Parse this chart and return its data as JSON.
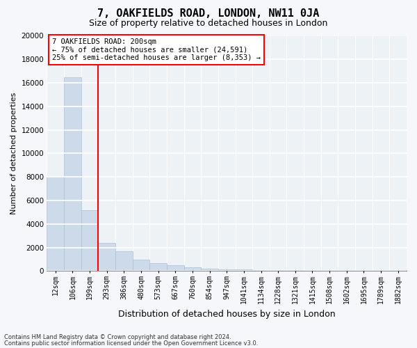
{
  "title": "7, OAKFIELDS ROAD, LONDON, NW11 0JA",
  "subtitle": "Size of property relative to detached houses in London",
  "xlabel": "Distribution of detached houses by size in London",
  "ylabel": "Number of detached properties",
  "bar_labels": [
    "12sqm",
    "106sqm",
    "199sqm",
    "293sqm",
    "386sqm",
    "480sqm",
    "573sqm",
    "667sqm",
    "760sqm",
    "854sqm",
    "947sqm",
    "1041sqm",
    "1134sqm",
    "1228sqm",
    "1321sqm",
    "1415sqm",
    "1508sqm",
    "1602sqm",
    "1695sqm",
    "1789sqm",
    "1882sqm"
  ],
  "bar_values": [
    8000,
    16500,
    5200,
    2400,
    1700,
    980,
    700,
    480,
    330,
    230,
    170,
    130,
    100,
    80,
    60,
    48,
    35,
    28,
    20,
    15,
    10
  ],
  "bar_color": "#ccdaea",
  "bar_edge_color": "#aac0d8",
  "property_bar_index": 2,
  "property_line_color": "red",
  "annotation_text": "7 OAKFIELDS ROAD: 200sqm\n← 75% of detached houses are smaller (24,591)\n25% of semi-detached houses are larger (8,353) →",
  "annotation_box_facecolor": "white",
  "annotation_box_edgecolor": "red",
  "ylim": [
    0,
    20000
  ],
  "yticks": [
    0,
    2000,
    4000,
    6000,
    8000,
    10000,
    12000,
    14000,
    16000,
    18000,
    20000
  ],
  "footer_line1": "Contains HM Land Registry data © Crown copyright and database right 2024.",
  "footer_line2": "Contains public sector information licensed under the Open Government Licence v3.0.",
  "plot_bg_color": "#edf2f7",
  "fig_bg_color": "#f5f7fa",
  "grid_color": "white",
  "title_fontsize": 11,
  "subtitle_fontsize": 9,
  "ylabel_fontsize": 8,
  "xlabel_fontsize": 9,
  "tick_fontsize": 7,
  "annotation_fontsize": 7.5,
  "footer_fontsize": 6
}
